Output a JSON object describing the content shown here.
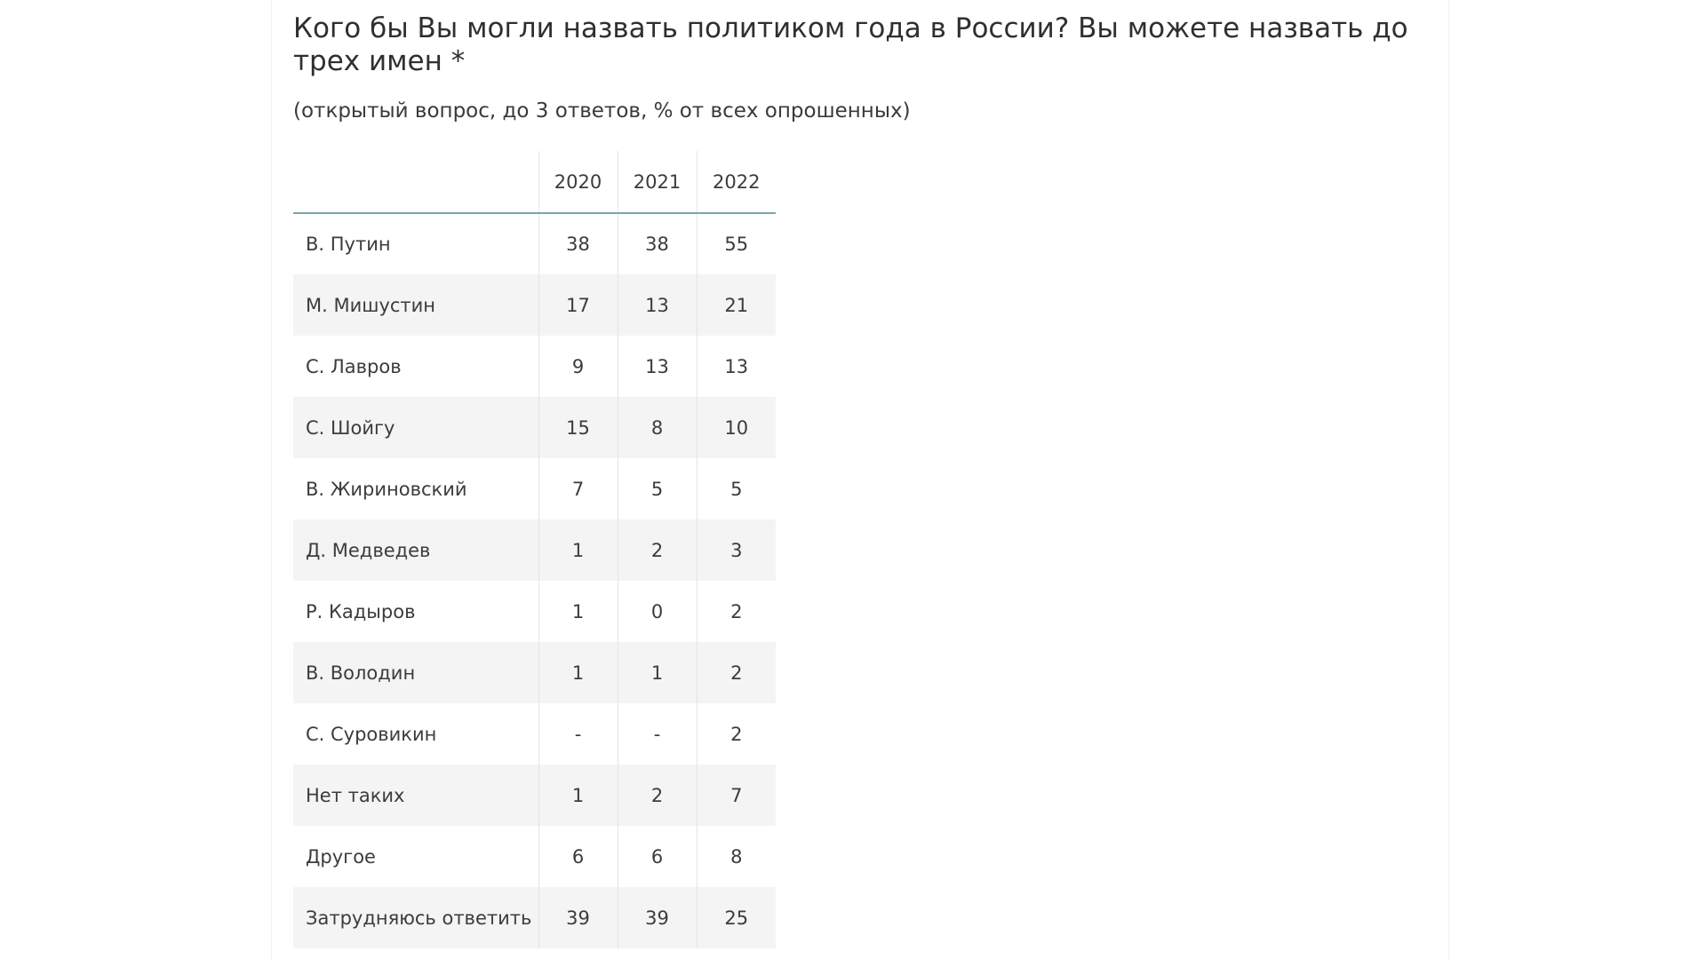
{
  "page": {
    "title": "Кого бы Вы могли назвать политиком года в России? Вы можете назвать до трех имен *",
    "subtitle": "(открытый вопрос, до 3 ответов, % от всех опрошенных)"
  },
  "colors": {
    "header_rule": "#7aa6ad",
    "stripe": "#f4f4f4",
    "text": "#333333"
  },
  "chart_data": {
    "type": "table",
    "title": "Кого бы Вы могли назвать политиком года в России? Вы можете назвать до трех имен *",
    "subtitle": "(открытый вопрос, до 3 ответов, % от всех опрошенных)",
    "columns": [
      "2020",
      "2021",
      "2022"
    ],
    "rows": [
      {
        "label": "В. Путин",
        "values": [
          "38",
          "38",
          "55"
        ]
      },
      {
        "label": "М. Мишустин",
        "values": [
          "17",
          "13",
          "21"
        ]
      },
      {
        "label": "С. Лавров",
        "values": [
          "9",
          "13",
          "13"
        ]
      },
      {
        "label": "С. Шойгу",
        "values": [
          "15",
          "8",
          "10"
        ]
      },
      {
        "label": "В. Жириновский",
        "values": [
          "7",
          "5",
          "5"
        ]
      },
      {
        "label": "Д. Медведев",
        "values": [
          "1",
          "2",
          "3"
        ]
      },
      {
        "label": "Р. Кадыров",
        "values": [
          "1",
          "0",
          "2"
        ]
      },
      {
        "label": "В. Володин",
        "values": [
          "1",
          "1",
          "2"
        ]
      },
      {
        "label": "С. Суровикин",
        "values": [
          "-",
          "-",
          "2"
        ]
      },
      {
        "label": "Нет таких",
        "values": [
          "1",
          "2",
          "7"
        ]
      },
      {
        "label": "Другое",
        "values": [
          "6",
          "6",
          "8"
        ]
      },
      {
        "label": "Затрудняюсь ответить",
        "values": [
          "39",
          "39",
          "25"
        ]
      }
    ]
  }
}
